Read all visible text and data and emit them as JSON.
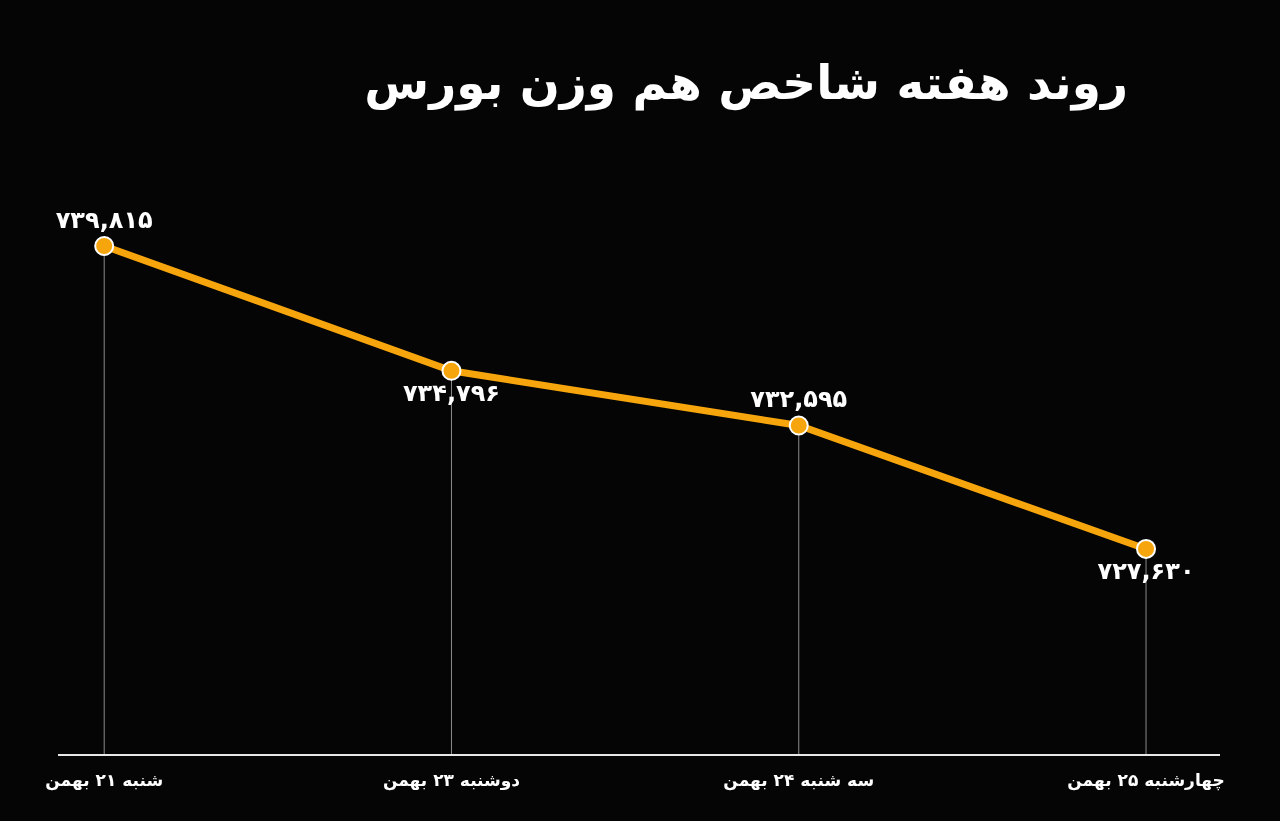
{
  "chart_data": {
    "type": "line",
    "title": "روند هفته شاخص هم وزن بورس",
    "categories": [
      "شنبه ۲۱ بهمن",
      "دوشنبه ۲۳ بهمن",
      "سه شنبه ۲۴ بهمن",
      "چهارشنبه ۲۵ بهمن"
    ],
    "series": [
      {
        "color": "#f7a50c",
        "values": [
          739815,
          734796,
          732595,
          727630
        ],
        "value_labels": [
          "۷۳۹,۸۱۵",
          "۷۳۴,۷۹۶",
          "۷۳۲,۵۹۵",
          "۷۲۷,۶۳۰"
        ]
      }
    ],
    "tick_labels": "x",
    "grid": "x",
    "marker": "circle",
    "line_style": "solid"
  }
}
